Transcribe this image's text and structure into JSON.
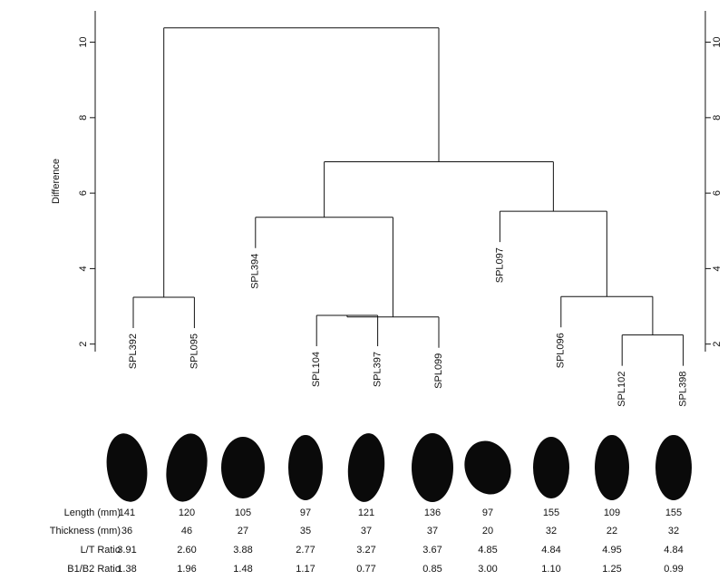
{
  "chart_data": {
    "type": "dendrogram",
    "y_label": "Difference",
    "ylim": [
      1.8,
      10.83
    ],
    "yticks": [
      2,
      4,
      6,
      8,
      10
    ],
    "tree": {
      "height": 10.38,
      "children": [
        {
          "height": 3.24,
          "children": [
            {
              "label": "SPL392"
            },
            {
              "label": "SPL095"
            }
          ]
        },
        {
          "height": 6.83,
          "children": [
            {
              "height": 5.36,
              "children": [
                {
                  "label": "SPL394"
                },
                {
                  "height": 2.72,
                  "children": [
                    {
                      "height": 2.76,
                      "children": [
                        {
                          "label": "SPL104"
                        },
                        {
                          "label": "SPL397"
                        }
                      ]
                    },
                    {
                      "label": "SPL099"
                    }
                  ]
                }
              ]
            },
            {
              "height": 5.52,
              "children": [
                {
                  "label": "SPL097"
                },
                {
                  "height": 3.26,
                  "children": [
                    {
                      "label": "SPL096"
                    },
                    {
                      "height": 2.24,
                      "children": [
                        {
                          "label": "SPL102"
                        },
                        {
                          "label": "SPL398"
                        }
                      ]
                    }
                  ]
                }
              ]
            }
          ]
        }
      ]
    },
    "color": "#000000"
  },
  "table": {
    "rows": [
      {
        "label": "Length (mm)",
        "values": [
          "141",
          "120",
          "105",
          "97",
          "121",
          "136",
          "97",
          "155",
          "109",
          "155"
        ]
      },
      {
        "label": "Thickness (mm)",
        "values": [
          "36",
          "46",
          "27",
          "35",
          "37",
          "37",
          "20",
          "32",
          "22",
          "32"
        ]
      },
      {
        "label": "L/T Ratio",
        "values": [
          "3.91",
          "2.60",
          "3.88",
          "2.77",
          "3.27",
          "3.67",
          "4.85",
          "4.84",
          "4.95",
          "4.84"
        ]
      },
      {
        "label": "B1/B2 Ratio",
        "values": [
          "1.38",
          "1.96",
          "1.48",
          "1.17",
          "0.77",
          "0.85",
          "3.00",
          "1.10",
          "1.25",
          "0.99"
        ]
      }
    ]
  }
}
